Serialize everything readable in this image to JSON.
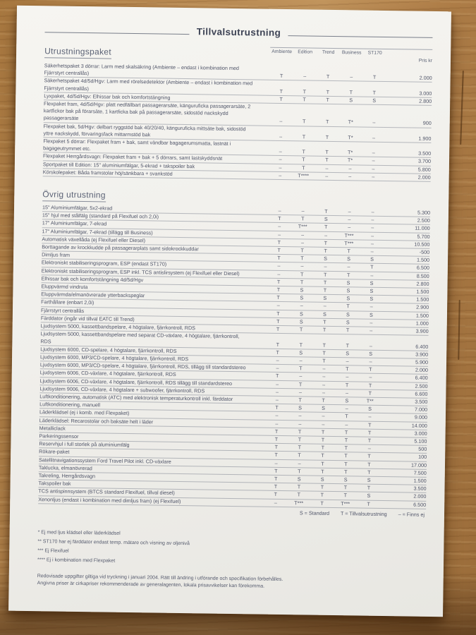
{
  "document": {
    "title": "Tillvalsutrustning",
    "columns": [
      "Ambiente",
      "Edition",
      "Trend",
      "Business",
      "ST170"
    ],
    "price_header": "Pris kr",
    "sections": [
      {
        "heading": "Utrustningspaket",
        "rows": [
          {
            "label": "Säkerhetspaket 3 dörrar: Larm med skalsäkring (Ambiente – endast i kombination med Fjärrstyrt centrallås)",
            "values": [
              "T",
              "–",
              "T",
              "–",
              "T"
            ],
            "price": "2.000"
          },
          {
            "label": "Säkerhetspaket 4d/5d/Hgv: Larm med rörelsedetektor (Ambiente – endast i kombination med Fjärrstyrt centrallås)",
            "values": [
              "T",
              "T",
              "T",
              "T",
              "T"
            ],
            "price": "3.000"
          },
          {
            "label": "Lyxpaket, 4d/5d/Hgv: Elhissar bak och komfortstängning",
            "values": [
              "T",
              "T",
              "T",
              "S",
              "S"
            ],
            "price": "2.800"
          },
          {
            "label": "Flexpaket fram, 4d/5d/Hgv: platt nedfällbart passagerarsäte, känguruficka passagerarsäte, 2 kartfickor bak på förarsäte, 1 kartficka bak på passagerarsäte, sidostöd nackskydd passagerarsäte",
            "values": [
              "–",
              "T",
              "T",
              "T*",
              "–"
            ],
            "price": "900"
          },
          {
            "label": "Flexpaket bak, 5d/Hgv: delbart ryggstöd bak 40/20/40, känguruficka mittsäte bak, sidostöd yttre nackskydd, förvaringsfack mittarmstöd bak",
            "values": [
              "–",
              "T",
              "T",
              "T*",
              "–"
            ],
            "price": "1.900"
          },
          {
            "label": "Flexpaket 5 dörrar: Flexpaket fram + bak, samt vändbar bagagerumsmatta, lastnät i bagageutrymmet etc.",
            "values": [
              "–",
              "T",
              "T",
              "T*",
              "–"
            ],
            "price": "3.500"
          },
          {
            "label": "Flexpaket Herrgårdsvagn: Flexpaket fram + bak + 5 dörrars, samt lastskyddsnät",
            "values": [
              "–",
              "T",
              "T",
              "T*",
              "–"
            ],
            "price": "3.700"
          },
          {
            "label": "Sportpaket till Edition: 15\" aluminiumfälgar, 5-ekrad + takspoiler bak",
            "values": [
              "–",
              "T",
              "–",
              "–",
              "–"
            ],
            "price": "5.800"
          },
          {
            "label": "Körskolepaket: Båda framstolar höj/sänkbara + svankstöd",
            "values": [
              "–",
              "T****",
              "–",
              "–",
              "–"
            ],
            "price": "2.000"
          }
        ]
      },
      {
        "heading": "Övrig utrustning",
        "rows": [
          {
            "label": "15\" Aluminiumfälgar, 5x2-ekrad",
            "values": [
              "–",
              "–",
              "T",
              "–",
              "–"
            ],
            "price": "5.300"
          },
          {
            "label": "15\" hjul med stålfälg (standard på Flexifuel och 2,0i)",
            "values": [
              "T",
              "T",
              "S",
              "–",
              "–"
            ],
            "price": "2.500"
          },
          {
            "label": "17\" Aluminiumfälgar, 7-ekrad",
            "values": [
              "–",
              "T***",
              "T",
              "–",
              "–"
            ],
            "price": "11.000"
          },
          {
            "label": "17\" Aluminiumfälgar, 7-ekrad (tillägg till Business)",
            "values": [
              "–",
              "–",
              "–",
              "T***",
              "–"
            ],
            "price": "5.700"
          },
          {
            "label": "Automatisk växellåda (ej Flexifuel eller Diesel)",
            "values": [
              "T",
              "–",
              "T",
              "T***",
              "–"
            ],
            "price": "10.500"
          },
          {
            "label": "Borttagande av krockkudde på passagerarplats samt sidokrockkuddar",
            "values": [
              "T",
              "T",
              "T",
              "T",
              "–"
            ],
            "price": "-500"
          },
          {
            "label": "Dimljus fram",
            "values": [
              "T",
              "T",
              "S",
              "S",
              "S"
            ],
            "price": "1.500"
          },
          {
            "label": "Elektroniskt stabiliseringsprogram, ESP (endast ST170)",
            "values": [
              "–",
              "–",
              "–",
              "–",
              "T"
            ],
            "price": "6.500"
          },
          {
            "label": "Elektroniskt stabiliseringsprogram, ESP inkl. TCS antislirsystem (ej Flexifuel eller Diesel)",
            "values": [
              "–",
              "T",
              "T",
              "T",
              "–"
            ],
            "price": "8.500"
          },
          {
            "label": "Elhissar bak och komfortstängning 4d/5d/Hgv",
            "values": [
              "T",
              "T",
              "T",
              "S",
              "S"
            ],
            "price": "2.800"
          },
          {
            "label": "Eluppvärmd vindruta",
            "values": [
              "T",
              "S",
              "T",
              "S",
              "S"
            ],
            "price": "1.500"
          },
          {
            "label": "Eluppvärmda/elmanövrerade ytterbackspeglar",
            "values": [
              "T",
              "S",
              "S",
              "S",
              "S"
            ],
            "price": "1.500"
          },
          {
            "label": "Farthållare (enbart 2,0i)",
            "values": [
              "–",
              "–",
              "–",
              "T",
              "–"
            ],
            "price": "2.900"
          },
          {
            "label": "Fjärrstyrt centrallås",
            "values": [
              "T",
              "S",
              "S",
              "S",
              "S"
            ],
            "price": "1.500"
          },
          {
            "label": "Färddator (ingår vid tillval EATC till Trend)",
            "values": [
              "T",
              "S",
              "T",
              "S",
              "–"
            ],
            "price": "1.000"
          },
          {
            "label": "Ljudsystem 5000, kassettbandspelare, 4 högtalare, fjärrkontroll, RDS",
            "values": [
              "T",
              "T",
              "T",
              "T",
              "–"
            ],
            "price": "3.900"
          },
          {
            "label": "Ljudsystem 5000, kassettbandspelare med separat CD-växlare, 4 högtalare, fjärrkontroll, RDS",
            "values": [
              "T",
              "T",
              "T",
              "T",
              "–"
            ],
            "price": "6.400"
          },
          {
            "label": "Ljudsystem 6000, CD-spelare, 4 högtalare, fjärrkontroll, RDS",
            "values": [
              "T",
              "S",
              "T",
              "S",
              "S"
            ],
            "price": "3.900"
          },
          {
            "label": "Ljudsystem 6000, MP3/CD-spelare, 4 högtalare, fjärrkontroll, RDS",
            "values": [
              "–",
              "–",
              "T",
              "–",
              "–"
            ],
            "price": "5.900"
          },
          {
            "label": "Ljudsystem 6000, MP3/CD-spelare, 4 högtalare, fjärrkontroll, RDS, tillägg till standardstereo",
            "values": [
              "–",
              "T",
              "–",
              "T",
              "T"
            ],
            "price": "2.000"
          },
          {
            "label": "Ljudsystem 6006, CD-växlare, 4 högtalare, fjärrkontroll, RDS",
            "values": [
              "T",
              "–",
              "–",
              "–",
              "–"
            ],
            "price": "6.400"
          },
          {
            "label": "Ljudsystem 6006, CD-växlare, 4 högtalare, fjärrkontroll, RDS tillägg till standardstereo",
            "values": [
              "–",
              "T",
              "–",
              "T",
              "T"
            ],
            "price": "2.500"
          },
          {
            "label": "Ljudsystem 9006, CD-växlare, 4 högtalare + subwoofer, fjärrkontroll, RDS",
            "values": [
              "–",
              "–",
              "–",
              "–",
              "T"
            ],
            "price": "6.600"
          },
          {
            "label": "Luftkonditionering, automatisk (ATC) med elektronisk temperaturkontroll inkl. färddator",
            "values": [
              "–",
              "T",
              "T",
              "S",
              "T**"
            ],
            "price": "3.500"
          },
          {
            "label": "Luftkonditionering, manuell",
            "values": [
              "T",
              "S",
              "S",
              "–",
              "S"
            ],
            "price": "7.000"
          },
          {
            "label": "Läderklädsel (ej i komb. med Flexpaket)",
            "values": [
              "–",
              "–",
              "–",
              "T",
              "–"
            ],
            "price": "9.000"
          },
          {
            "label": "Läderklädsel: Recarostolar och baksäte helt i läder",
            "values": [
              "–",
              "–",
              "–",
              "–",
              "T"
            ],
            "price": "14.000"
          },
          {
            "label": "Metalliclack",
            "values": [
              "T",
              "T",
              "T",
              "T",
              "T"
            ],
            "price": "3.000"
          },
          {
            "label": "Parkeringssensor",
            "values": [
              "T",
              "T",
              "T",
              "T",
              "T"
            ],
            "price": "5.100"
          },
          {
            "label": "Reservhjul i full storlek på aluminiumfälg",
            "values": [
              "T",
              "T",
              "T",
              "T",
              "–"
            ],
            "price": "500"
          },
          {
            "label": "Rökare-paket",
            "values": [
              "T",
              "T",
              "T",
              "T",
              "T"
            ],
            "price": "100"
          },
          {
            "label": "Satellitnavigationssystem Ford Travel Pilot inkl. CD-växlare",
            "values": [
              "–",
              "–",
              "T",
              "T",
              "T"
            ],
            "price": "17.000"
          },
          {
            "label": "Taklucka, elmanövrerad",
            "values": [
              "T",
              "T",
              "T",
              "T",
              "T"
            ],
            "price": "7.500"
          },
          {
            "label": "Takreling, Herrgårdsvagn",
            "values": [
              "T",
              "S",
              "S",
              "S",
              "S"
            ],
            "price": "1.500"
          },
          {
            "label": "Takspoiler bak",
            "values": [
              "T",
              "T",
              "T",
              "T",
              "T"
            ],
            "price": "3.500"
          },
          {
            "label": "TCS antispinnsystem (BTCS standard Flexifuel, tillval diesel)",
            "values": [
              "T",
              "T",
              "T",
              "T",
              "S"
            ],
            "price": "2.000"
          },
          {
            "label": "Xenonljus (endast i kombination med dimljus fram) (ej Flexifuel)",
            "values": [
              "–",
              "T***",
              "T",
              "T***",
              "T"
            ],
            "price": "6.500"
          }
        ]
      }
    ],
    "legend": [
      "S = Standard",
      "T = Tillvalsutrustning",
      "– = Finns ej"
    ],
    "footnotes": [
      "* Ej med ljus klädsel eller läderklädsel",
      "** ST170 har ej färddator endast temp. mätare och visning av oljenivå",
      "*** Ej Flexifuel",
      "**** Ej i kombination med Flexpaket"
    ],
    "disclaimer": [
      "Redovisade uppgifter giltiga vid tryckning i januari 2004. Rätt till ändring i utförande och specifikation förbehålles.",
      "Angivna priser är cirkapriser rekommenderade av generalagenten, lokala prisavvikelser kan förekomma."
    ]
  },
  "colors": {
    "paper": "#f0efeb",
    "ink": "#4f5468",
    "rule": "#b4b8c0",
    "wood": "#b07f49"
  }
}
